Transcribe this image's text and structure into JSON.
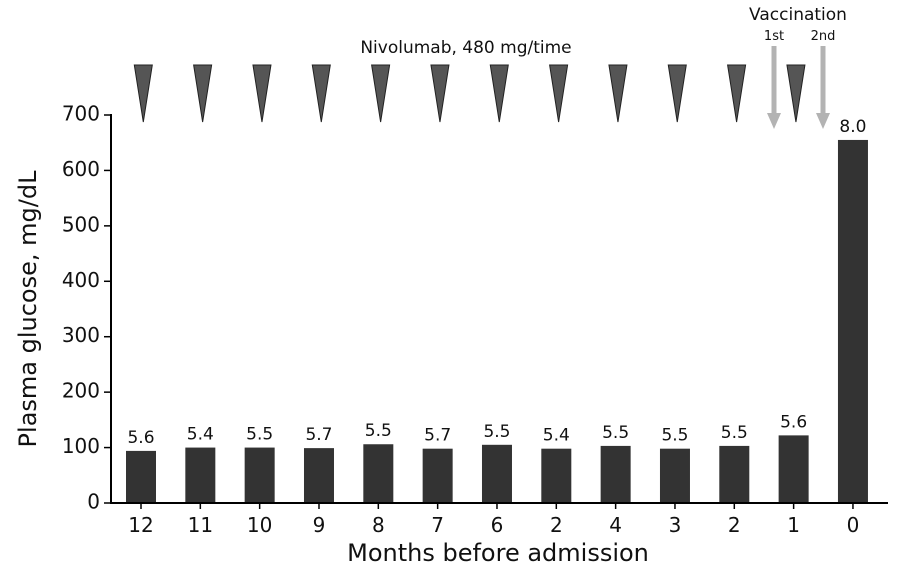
{
  "chart_data": {
    "type": "bar",
    "title": "",
    "xlabel": "Months before admission",
    "ylabel": "Plasma glucose, mg/dL",
    "ylim": [
      0,
      700
    ],
    "yticks": [
      0,
      100,
      200,
      300,
      400,
      500,
      600,
      700
    ],
    "categories": [
      "12",
      "11",
      "10",
      "9",
      "8",
      "7",
      "6",
      "2",
      "4",
      "3",
      "2",
      "1",
      "0"
    ],
    "values": [
      94,
      100,
      100,
      99,
      106,
      98,
      105,
      98,
      103,
      98,
      103,
      122,
      655
    ],
    "data_labels": [
      "5.6",
      "5.4",
      "5.5",
      "5.7",
      "5.5",
      "5.7",
      "5.5",
      "5.4",
      "5.5",
      "5.5",
      "5.5",
      "5.6",
      "8.0"
    ],
    "bar_color": "#333333",
    "grid": false,
    "annotations": {
      "nivolumab_label": "Nivolumab, 480 mg/time",
      "nivolumab_marker_color": "#555555",
      "vaccination_label": "Vaccination",
      "vaccination_1st": "1st",
      "vaccination_2nd": "2nd",
      "vaccination_arrow_color": "#b3b3b3"
    }
  }
}
